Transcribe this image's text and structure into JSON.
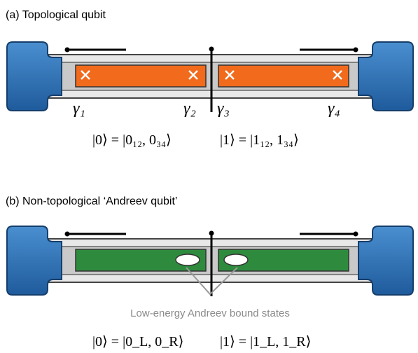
{
  "panel_a": {
    "title": "(a) Topological qubit",
    "majoranas": [
      "γ₁",
      "γ₂",
      "γ₃",
      "γ₄"
    ],
    "state_0": "|0⟩ = |0₁₂, 0₃₄⟩",
    "state_1": "|1⟩ = |1₁₂, 1₃₄⟩"
  },
  "panel_b": {
    "title": "(b) Non-topological ‘Andreev qubit’",
    "annotation": "Low-energy Andreev bound states",
    "state_0": "|0⟩ = |0_L, 0_R⟩",
    "state_1": "|1⟩ = |1_L, 1_R⟩"
  }
}
